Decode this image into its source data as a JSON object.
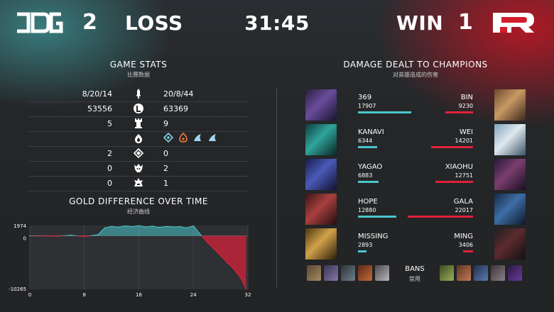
{
  "header": {
    "left_team": {
      "logo_text": "JDG",
      "score": "2",
      "result": "LOSS"
    },
    "game_time": "31:45",
    "right_team": {
      "logo_text": "RNG",
      "score": "1",
      "result": "WIN"
    },
    "colors": {
      "left": "#49c6cb",
      "right": "#e0213a"
    }
  },
  "game_stats": {
    "title": "GAME STATS",
    "subtitle": "比赛数据",
    "rows": [
      {
        "icon": "sword-icon",
        "left": "8/20/14",
        "right": "20/8/44"
      },
      {
        "icon": "gold-coin-icon",
        "left": "53556",
        "right": "63369"
      },
      {
        "icon": "tower-icon",
        "left": "5",
        "right": "9"
      },
      {
        "icon": "dragon-icon",
        "left": "",
        "right": "",
        "right_icons": [
          "cloud-drake-icon",
          "infernal-drake-icon",
          "ocean-drake-icon",
          "ocean-drake-icon"
        ]
      },
      {
        "icon": "herald-icon",
        "left": "2",
        "right": "0"
      },
      {
        "icon": "baron-icon",
        "left": "0",
        "right": "2"
      },
      {
        "icon": "elder-icon",
        "left": "0",
        "right": "1"
      }
    ]
  },
  "gold_diff": {
    "title": "GOLD DIFFERENCE OVER TIME",
    "subtitle": "经济曲线",
    "y_top_label": "1974",
    "y_zero_label": "0",
    "y_bottom_label": "-10265",
    "x_ticks": [
      "0",
      "8",
      "16",
      "24",
      "32"
    ]
  },
  "chart_data": {
    "type": "area",
    "title": "GOLD DIFFERENCE OVER TIME",
    "xlabel": "",
    "ylabel": "",
    "x": [
      0,
      2,
      4,
      6,
      8,
      10,
      11,
      12,
      13,
      14,
      15,
      16,
      17,
      18,
      19,
      20,
      21,
      22,
      23,
      24,
      25,
      26,
      27,
      28,
      29,
      30,
      31,
      31.75
    ],
    "y": [
      0,
      -50,
      -80,
      100,
      -150,
      200,
      1500,
      1800,
      1650,
      1900,
      1750,
      1974,
      1700,
      1850,
      1600,
      1800,
      1700,
      1750,
      1500,
      1900,
      300,
      -1200,
      -2500,
      -3800,
      -5200,
      -6500,
      -8200,
      -10265
    ],
    "ylim": [
      -10265,
      1974
    ],
    "xlim": [
      0,
      32
    ],
    "positive_color": "#49c6cb",
    "negative_color": "#e0213a"
  },
  "damage": {
    "title": "DAMAGE DEALT TO CHAMPIONS",
    "subtitle": "对英雄造成的伤害",
    "max": 22017,
    "rows": [
      {
        "left_name": "369",
        "left_value": 17907,
        "right_name": "BIN",
        "right_value": 9230
      },
      {
        "left_name": "KANAVI",
        "left_value": 6344,
        "right_name": "WEI",
        "right_value": 14201
      },
      {
        "left_name": "YAGAO",
        "left_value": 6883,
        "right_name": "XIAOHU",
        "right_value": 12751
      },
      {
        "left_name": "HOPE",
        "left_value": 12880,
        "right_name": "GALA",
        "right_value": 22017
      },
      {
        "left_name": "MISSING",
        "left_value": 2893,
        "right_name": "MING",
        "right_value": 3406
      }
    ]
  },
  "bans": {
    "label": "BANS",
    "sublabel": "禁用",
    "left": [
      "ban-champion-1",
      "ban-champion-2",
      "ban-champion-3",
      "ban-champion-4",
      "ban-champion-5"
    ],
    "right": [
      "ban-champion-6",
      "ban-champion-7",
      "ban-champion-8",
      "ban-champion-9",
      "ban-champion-10"
    ]
  }
}
